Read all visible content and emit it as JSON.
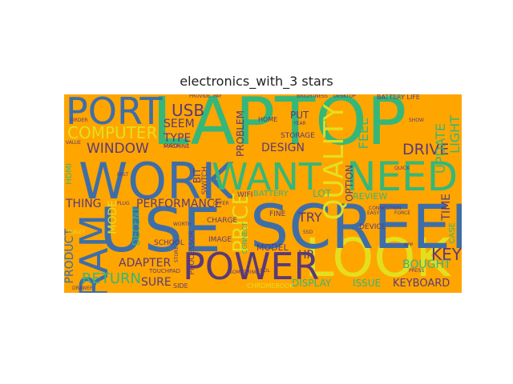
{
  "title": "electronics_with_3 stars",
  "colors": {
    "background": "#ffa500",
    "teal": "#35b779",
    "blue": "#3e6ea8",
    "purple": "#5a3a78",
    "yellow": "#e3df1f",
    "green": "#6ccd5a"
  },
  "words": [
    "LAPTOP",
    "LOOK",
    "USE",
    "SCREEN",
    "WORK",
    "WANT",
    "NEED",
    "PORT",
    "POWER",
    "RAM",
    "PRICE",
    "QUALITY",
    "COMPUTER",
    "WINDOW",
    "DRIVE",
    "USB",
    "SEEM",
    "TYPE",
    "DESIGN",
    "KEY",
    "RETURN",
    "ADAPTER",
    "SURE",
    "PERFORMANCE",
    "THING",
    "PRODUCT",
    "MODE",
    "TRY",
    "HP",
    "BOUGHT",
    "DISPLAY",
    "ISSUE",
    "KEYBOARD",
    "TIME",
    "LIGHT",
    "UPDATE",
    "FEEL",
    "PUT",
    "PROBLEM",
    "LOT",
    "BATTERY",
    "OPTION",
    "REVIEW",
    "BATTERY LIFE",
    "CASE",
    "STORAGE",
    "CHROMEBOOK",
    "MODEL",
    "HDMI",
    "SCHOOL",
    "DECENT",
    "BIT",
    "CHARGE",
    "PROCESSOR",
    "WIFI",
    "FINE",
    "IMAGE",
    "SWITCH",
    "DEVICE",
    "CONNECT",
    "HOME",
    "GAME",
    "SIDE",
    "TOUCHPAD",
    "DESKTOP",
    "BRIGHTNESS",
    "PROVIDE",
    "PAY",
    "SHOW",
    "DRAWER",
    "CONNECTION",
    "SSD",
    "FORCE",
    "QUICK",
    "PRESS",
    "APP",
    "TABLET",
    "VALUE",
    "CHECK",
    "EASY",
    "SOMETHING",
    "COOL",
    "PLUG",
    "FAST",
    "WORTH",
    "OFFER",
    "ORDER",
    "YEAR",
    "STORE",
    "MACHINE"
  ]
}
